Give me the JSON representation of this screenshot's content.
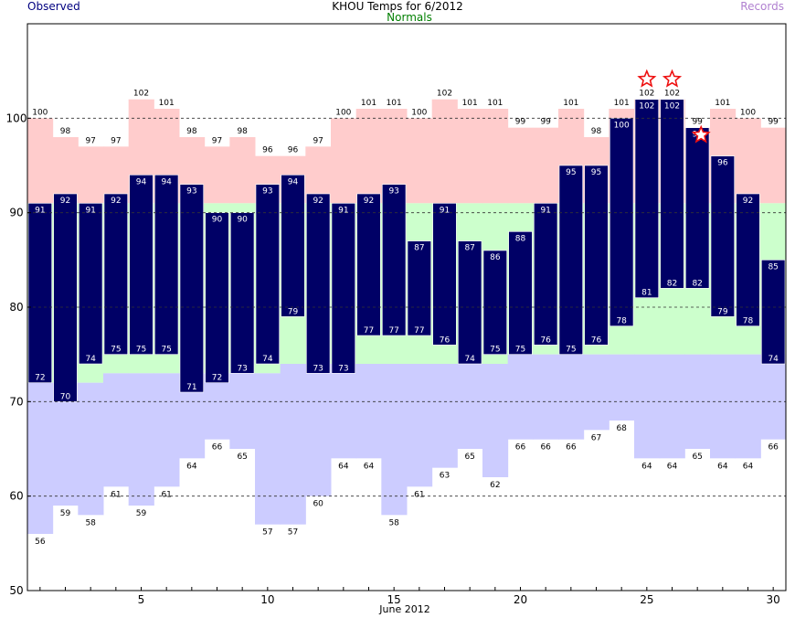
{
  "title": "KHOU Temps for 6/2012",
  "legend": {
    "observed": "Observed",
    "normals": "Normals",
    "records": "Records"
  },
  "colors": {
    "observed_text": "#000080",
    "normals_text": "#007f00",
    "records_text": "#b080d0",
    "observed_bar": "#000066",
    "normal_band": "#ccffcc",
    "record_high_band": "#ffcccc",
    "record_low_band": "#ccccff",
    "record_star": "#ee1111",
    "gridline": "#333333"
  },
  "chart_data": {
    "type": "bar",
    "title": "KHOU Temps for 6/2012",
    "xlabel": "June 2012",
    "ylabel": "",
    "days": [
      1,
      2,
      3,
      4,
      5,
      6,
      7,
      8,
      9,
      10,
      11,
      12,
      13,
      14,
      15,
      16,
      17,
      18,
      19,
      20,
      21,
      22,
      23,
      24,
      25,
      26,
      27,
      28,
      29,
      30
    ],
    "xticks": [
      5,
      10,
      15,
      20,
      25,
      30
    ],
    "ylim": [
      50,
      110
    ],
    "yticks": [
      50,
      60,
      70,
      80,
      90,
      100
    ],
    "grid": "dashed horizontal",
    "series": [
      {
        "name": "Observed",
        "high": [
          91,
          92,
          91,
          92,
          94,
          94,
          93,
          90,
          90,
          93,
          94,
          92,
          91,
          92,
          93,
          87,
          91,
          87,
          86,
          88,
          91,
          95,
          95,
          100,
          102,
          102,
          99,
          96,
          92,
          85
        ],
        "low": [
          72,
          70,
          74,
          75,
          75,
          75,
          71,
          72,
          73,
          74,
          79,
          73,
          73,
          77,
          77,
          77,
          76,
          74,
          75,
          75,
          76,
          75,
          76,
          78,
          81,
          82,
          82,
          79,
          78,
          74
        ]
      },
      {
        "name": "Normals",
        "high": [
          91,
          91,
          91,
          91,
          91,
          91,
          91,
          91,
          91,
          91,
          91,
          91,
          91,
          91,
          91,
          91,
          91,
          91,
          91,
          91,
          91,
          91,
          91,
          91,
          91,
          91,
          91,
          91,
          91,
          91
        ],
        "low": [
          72,
          72,
          72,
          73,
          73,
          73,
          73,
          73,
          73,
          73,
          74,
          74,
          74,
          74,
          74,
          74,
          74,
          74,
          74,
          75,
          75,
          75,
          75,
          75,
          75,
          75,
          75,
          75,
          75,
          75
        ]
      },
      {
        "name": "Records",
        "high": [
          100,
          98,
          97,
          97,
          102,
          101,
          98,
          97,
          98,
          96,
          96,
          97,
          100,
          101,
          101,
          100,
          102,
          101,
          101,
          99,
          99,
          101,
          98,
          101,
          102,
          102,
          99,
          101,
          100,
          99
        ],
        "low": [
          56,
          59,
          58,
          61,
          59,
          61,
          64,
          66,
          65,
          57,
          57,
          60,
          64,
          64,
          58,
          61,
          63,
          65,
          62,
          66,
          66,
          66,
          67,
          68,
          64,
          64,
          65,
          64,
          64,
          66
        ]
      }
    ],
    "record_set_days": [
      25,
      26,
      27
    ]
  }
}
